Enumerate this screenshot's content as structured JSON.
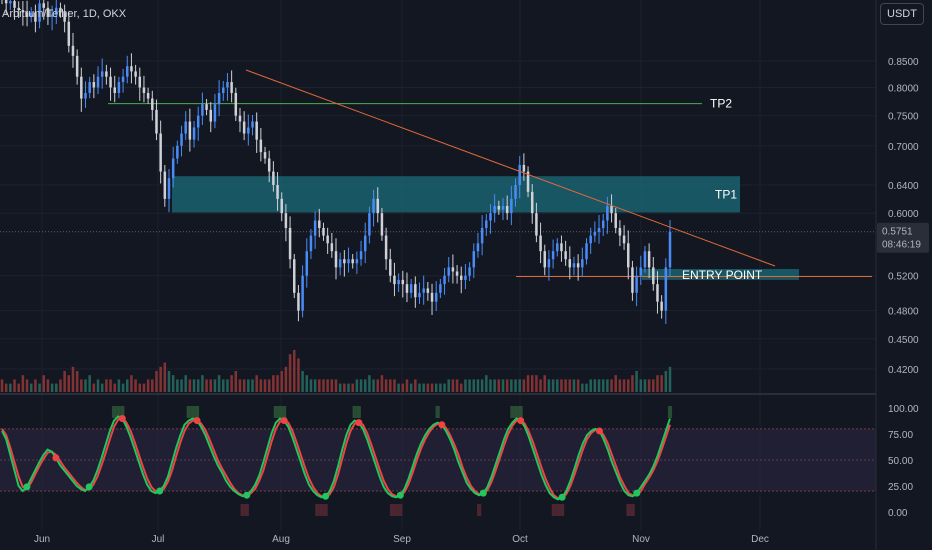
{
  "header": {
    "symbol": "Arbitrum/Tether, 1D, OKX",
    "currency_button": "USDT"
  },
  "price_badge": {
    "price": "0.5751",
    "countdown": "08:46:19"
  },
  "colors": {
    "up": "#4a8cf7",
    "down": "#cfd1d6",
    "vol_up": "#27695f",
    "vol_down": "#8e3636",
    "zone": "#1a6270",
    "tp2": "#4caf50",
    "trend": "#e0693a",
    "entry": "#e0693a",
    "k_line": "#22c55e",
    "d_line": "#ef4444"
  },
  "chart_data": [
    {
      "type": "candlestick",
      "title": "",
      "scale": "log",
      "x_ticks": [
        "Jun",
        "Jul",
        "Aug",
        "Sep",
        "Oct",
        "Nov",
        "Dec"
      ],
      "y_ticks": [
        "0.8500",
        "0.8000",
        "0.7500",
        "0.7000",
        "0.6400",
        "0.6000",
        "0.5200",
        "0.4800",
        "0.4500",
        "0.4200"
      ],
      "ylim": [
        0.41,
        0.93
      ],
      "close_path": [
        0.98,
        0.97,
        0.975,
        0.96,
        0.955,
        0.95,
        0.94,
        0.95,
        0.93,
        0.97,
        0.96,
        0.94,
        0.945,
        0.96,
        0.95,
        0.93,
        0.88,
        0.86,
        0.82,
        0.78,
        0.79,
        0.81,
        0.8,
        0.82,
        0.83,
        0.82,
        0.8,
        0.79,
        0.81,
        0.82,
        0.84,
        0.83,
        0.82,
        0.8,
        0.79,
        0.78,
        0.76,
        0.72,
        0.66,
        0.62,
        0.65,
        0.68,
        0.7,
        0.72,
        0.74,
        0.71,
        0.73,
        0.75,
        0.77,
        0.76,
        0.74,
        0.77,
        0.79,
        0.8,
        0.81,
        0.79,
        0.75,
        0.74,
        0.72,
        0.73,
        0.74,
        0.71,
        0.69,
        0.68,
        0.66,
        0.64,
        0.62,
        0.6,
        0.58,
        0.54,
        0.5,
        0.48,
        0.52,
        0.55,
        0.57,
        0.59,
        0.58,
        0.57,
        0.56,
        0.55,
        0.53,
        0.54,
        0.535,
        0.54,
        0.535,
        0.54,
        0.55,
        0.57,
        0.6,
        0.62,
        0.6,
        0.57,
        0.54,
        0.52,
        0.51,
        0.515,
        0.51,
        0.5,
        0.51,
        0.495,
        0.5,
        0.505,
        0.5,
        0.49,
        0.5,
        0.51,
        0.52,
        0.53,
        0.525,
        0.52,
        0.515,
        0.52,
        0.53,
        0.55,
        0.56,
        0.58,
        0.59,
        0.6,
        0.61,
        0.605,
        0.61,
        0.6,
        0.62,
        0.64,
        0.67,
        0.66,
        0.63,
        0.6,
        0.57,
        0.55,
        0.53,
        0.54,
        0.55,
        0.56,
        0.55,
        0.54,
        0.53,
        0.535,
        0.53,
        0.54,
        0.56,
        0.57,
        0.575,
        0.58,
        0.59,
        0.61,
        0.6,
        0.58,
        0.57,
        0.56,
        0.53,
        0.5,
        0.52,
        0.53,
        0.55,
        0.53,
        0.51,
        0.49,
        0.48,
        0.53,
        0.575
      ],
      "volume_path": [
        3,
        2,
        2,
        3,
        2,
        4,
        3,
        2,
        3,
        2,
        4,
        3,
        2,
        2,
        3,
        5,
        4,
        6,
        5,
        3,
        3,
        4,
        2,
        3,
        2,
        3,
        3,
        2,
        3,
        2,
        3,
        4,
        3,
        2,
        2,
        3,
        3,
        5,
        6,
        7,
        5,
        4,
        3,
        3,
        4,
        3,
        3,
        3,
        4,
        3,
        3,
        3,
        4,
        3,
        3,
        4,
        5,
        3,
        3,
        3,
        3,
        4,
        3,
        3,
        3,
        4,
        4,
        5,
        6,
        9,
        10,
        8,
        5,
        4,
        3,
        3,
        3,
        3,
        3,
        3,
        3,
        2,
        2,
        2,
        2,
        3,
        3,
        3,
        4,
        3,
        3,
        4,
        3,
        3,
        3,
        2,
        2,
        3,
        2,
        3,
        2,
        2,
        2,
        2,
        2,
        2,
        2,
        3,
        3,
        3,
        2,
        3,
        3,
        3,
        3,
        3,
        4,
        3,
        3,
        3,
        3,
        3,
        3,
        3,
        3,
        3,
        4,
        4,
        4,
        3,
        4,
        3,
        3,
        3,
        3,
        3,
        3,
        3,
        3,
        2,
        2,
        3,
        3,
        3,
        3,
        3,
        3,
        4,
        3,
        3,
        3,
        4,
        5,
        3,
        3,
        3,
        3,
        4,
        4,
        5,
        6
      ],
      "series": [
        {
          "name": "TP2",
          "value": 0.771
        },
        {
          "name": "TP1",
          "zone": [
            0.601,
            0.653
          ]
        },
        {
          "name": "ENTRY POINT",
          "zone": [
            0.515,
            0.528
          ],
          "line": 0.519
        }
      ],
      "current_price": 0.5751
    },
    {
      "type": "line",
      "title": "",
      "y_ticks": [
        "100.00",
        "75.00",
        "50.00",
        "25.00",
        "0.00"
      ],
      "ylim": [
        -6,
        104
      ],
      "bands": [
        20,
        80
      ],
      "k_path": [
        78,
        70,
        55,
        40,
        25,
        20,
        24,
        32,
        40,
        48,
        55,
        60,
        58,
        52,
        45,
        40,
        35,
        30,
        25,
        22,
        20,
        24,
        30,
        40,
        52,
        65,
        78,
        88,
        92,
        90,
        82,
        72,
        60,
        48,
        36,
        26,
        20,
        18,
        20,
        25,
        34,
        48,
        62,
        74,
        84,
        88,
        90,
        88,
        82,
        74,
        64,
        54,
        45,
        38,
        30,
        24,
        20,
        17,
        15,
        16,
        20,
        26,
        35,
        48,
        62,
        76,
        86,
        90,
        88,
        82,
        72,
        60,
        48,
        36,
        26,
        20,
        16,
        14,
        15,
        20,
        30,
        44,
        60,
        74,
        84,
        88,
        86,
        80,
        70,
        58,
        46,
        34,
        24,
        18,
        15,
        14,
        16,
        22,
        32,
        44,
        56,
        66,
        74,
        80,
        84,
        86,
        84,
        78,
        70,
        60,
        48,
        38,
        28,
        22,
        18,
        16,
        18,
        24,
        34,
        46,
        58,
        70,
        80,
        86,
        90,
        88,
        82,
        72,
        60,
        48,
        36,
        26,
        18,
        14,
        12,
        14,
        20,
        30,
        42,
        55,
        66,
        74,
        78,
        80,
        78,
        70,
        60,
        48,
        38,
        28,
        20,
        16,
        15,
        18,
        24,
        30,
        36,
        44,
        54,
        66,
        78,
        90
      ],
      "d_path": [
        80,
        74,
        62,
        48,
        34,
        24,
        22,
        28,
        36,
        44,
        51,
        57,
        58,
        55,
        49,
        43,
        38,
        33,
        28,
        24,
        21,
        22,
        26,
        34,
        45,
        57,
        70,
        82,
        89,
        91,
        86,
        78,
        67,
        55,
        43,
        32,
        24,
        20,
        19,
        22,
        29,
        40,
        54,
        67,
        78,
        85,
        88,
        89,
        85,
        79,
        70,
        60,
        50,
        42,
        35,
        28,
        22,
        18,
        16,
        15,
        18,
        22,
        30,
        40,
        54,
        68,
        80,
        87,
        89,
        86,
        78,
        67,
        55,
        43,
        32,
        24,
        18,
        15,
        14,
        17,
        24,
        36,
        51,
        66,
        78,
        85,
        87,
        84,
        76,
        65,
        53,
        41,
        30,
        22,
        17,
        15,
        15,
        19,
        27,
        38,
        50,
        61,
        70,
        77,
        82,
        85,
        85,
        81,
        74,
        65,
        55,
        43,
        33,
        25,
        20,
        17,
        17,
        21,
        29,
        40,
        52,
        64,
        75,
        83,
        88,
        89,
        85,
        77,
        67,
        55,
        43,
        32,
        23,
        16,
        13,
        13,
        17,
        25,
        36,
        48,
        60,
        70,
        76,
        79,
        79,
        74,
        66,
        55,
        44,
        33,
        25,
        18,
        16,
        16,
        20,
        27,
        33,
        40,
        49,
        60,
        72,
        84
      ]
    }
  ]
}
